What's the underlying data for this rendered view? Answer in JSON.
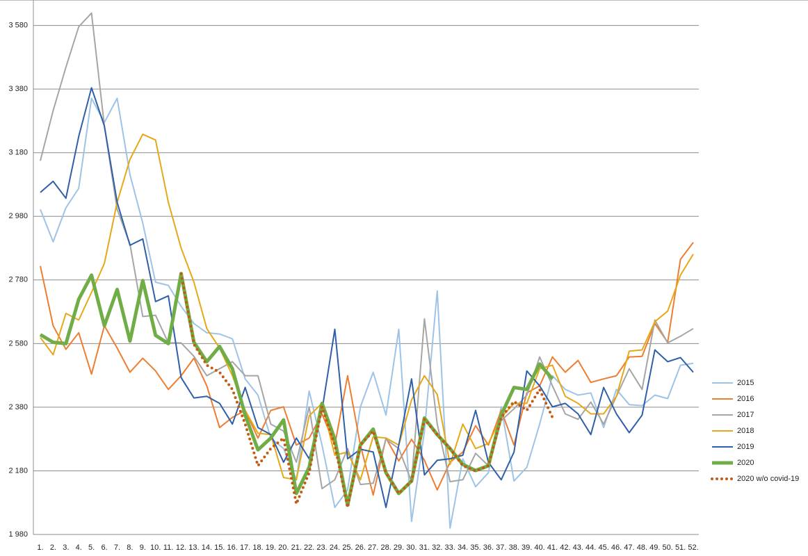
{
  "chart_data": {
    "type": "line",
    "categories": [
      "1.",
      "2.",
      "3.",
      "4.",
      "5.",
      "6.",
      "7.",
      "8.",
      "9.",
      "10.",
      "11.",
      "12.",
      "13.",
      "14.",
      "15.",
      "16.",
      "17.",
      "18.",
      "19.",
      "20.",
      "21.",
      "22.",
      "23.",
      "24.",
      "25.",
      "26.",
      "27.",
      "28.",
      "29.",
      "30.",
      "31.",
      "32.",
      "33.",
      "34.",
      "35.",
      "36.",
      "37.",
      "38.",
      "39.",
      "40.",
      "41.",
      "42.",
      "43.",
      "44.",
      "45.",
      "46.",
      "47.",
      "48.",
      "49.",
      "50.",
      "51.",
      "52."
    ],
    "ylim": [
      1980,
      3660
    ],
    "yticks": [
      {
        "value": 1980,
        "label": "1 980"
      },
      {
        "value": 2180,
        "label": "2 180"
      },
      {
        "value": 2380,
        "label": "2 380"
      },
      {
        "value": 2580,
        "label": "2 580"
      },
      {
        "value": 2780,
        "label": "2 780"
      },
      {
        "value": 2980,
        "label": "2 980"
      },
      {
        "value": 3180,
        "label": "3 180"
      },
      {
        "value": 3380,
        "label": "3 380"
      },
      {
        "value": 3580,
        "label": "3 580"
      }
    ],
    "grid": true,
    "legend": "right",
    "series": [
      {
        "name": "2015",
        "color": "#9dc3e6",
        "width": 2,
        "style": "solid",
        "values": [
          3002,
          2900,
          3007,
          3068,
          3351,
          3275,
          3351,
          3111,
          2959,
          2773,
          2763,
          2697,
          2643,
          2614,
          2610,
          2595,
          2469,
          2418,
          2283,
          2250,
          2152,
          2431,
          2261,
          2065,
          2120,
          2381,
          2490,
          2355,
          2625,
          2021,
          2305,
          2745,
          2000,
          2218,
          2130,
          2174,
          2381,
          2148,
          2191,
          2327,
          2479,
          2436,
          2418,
          2425,
          2316,
          2436,
          2388,
          2385,
          2418,
          2407,
          2512,
          2518
        ]
      },
      {
        "name": "2016",
        "color": "#ed7d31",
        "width": 2,
        "style": "solid",
        "values": [
          2824,
          2636,
          2562,
          2614,
          2484,
          2636,
          2566,
          2490,
          2534,
          2494,
          2436,
          2479,
          2534,
          2447,
          2316,
          2348,
          2370,
          2283,
          2370,
          2381,
          2261,
          2283,
          2359,
          2261,
          2479,
          2261,
          2104,
          2283,
          2211,
          2279,
          2213,
          2120,
          2207,
          2239,
          2322,
          2261,
          2370,
          2261,
          2425,
          2447,
          2538,
          2490,
          2527,
          2458,
          2469,
          2479,
          2538,
          2540,
          2643,
          2584,
          2845,
          2898
        ]
      },
      {
        "name": "2017",
        "color": "#a5a5a5",
        "width": 2,
        "style": "solid",
        "values": [
          3155,
          3312,
          3449,
          3576,
          3619,
          3264,
          3002,
          2893,
          2665,
          2669,
          2582,
          2582,
          2540,
          2479,
          2501,
          2523,
          2479,
          2479,
          2327,
          2305,
          2207,
          2381,
          2124,
          2152,
          2250,
          2137,
          2141,
          2279,
          2250,
          2146,
          2658,
          2327,
          2146,
          2152,
          2235,
          2196,
          2338,
          2375,
          2418,
          2538,
          2447,
          2359,
          2342,
          2396,
          2327,
          2414,
          2501,
          2436,
          2654,
          2582,
          2603,
          2627
        ]
      },
      {
        "name": "2018",
        "color": "#e6a817",
        "width": 2,
        "style": "solid",
        "values": [
          2599,
          2545,
          2675,
          2654,
          2741,
          2832,
          3024,
          3159,
          3238,
          3220,
          3024,
          2880,
          2773,
          2627,
          2566,
          2479,
          2370,
          2298,
          2294,
          2159,
          2152,
          2353,
          2392,
          2229,
          2239,
          2152,
          2287,
          2283,
          2261,
          2403,
          2479,
          2420,
          2200,
          2327,
          2250,
          2266,
          2348,
          2392,
          2392,
          2501,
          2512,
          2414,
          2392,
          2359,
          2359,
          2414,
          2556,
          2560,
          2649,
          2682,
          2795,
          2861
        ]
      },
      {
        "name": "2019",
        "color": "#2e5fa8",
        "width": 2,
        "style": "solid",
        "values": [
          3055,
          3090,
          3037,
          3231,
          3384,
          3264,
          3024,
          2889,
          2909,
          2712,
          2730,
          2473,
          2409,
          2414,
          2392,
          2327,
          2442,
          2316,
          2294,
          2207,
          2283,
          2218,
          2370,
          2625,
          2218,
          2248,
          2239,
          2065,
          2261,
          2469,
          2167,
          2213,
          2218,
          2229,
          2370,
          2207,
          2152,
          2239,
          2494,
          2447,
          2381,
          2392,
          2359,
          2294,
          2442,
          2359,
          2300,
          2355,
          2560,
          2523,
          2536,
          2490
        ]
      },
      {
        "name": "2020",
        "color": "#70ad47",
        "width": 5,
        "style": "solid",
        "values": [
          2608,
          2584,
          2580,
          2719,
          2795,
          2636,
          2750,
          2588,
          2778,
          2606,
          2580,
          2800,
          2584,
          2523,
          2571,
          2501,
          2355,
          2246,
          2283,
          2340,
          2109,
          2191,
          2392,
          2279,
          2072,
          2261,
          2311,
          2174,
          2109,
          2148,
          2346,
          2294,
          2250,
          2200,
          2181,
          2196,
          2355,
          2442,
          2436,
          2516,
          2469,
          null,
          null,
          null,
          null,
          null,
          null,
          null,
          null,
          null,
          null,
          null
        ]
      },
      {
        "name": "2020 w/o covid-19",
        "color": "#c55a11",
        "width": 4,
        "style": "dotted",
        "values": [
          null,
          null,
          null,
          null,
          null,
          null,
          null,
          null,
          null,
          null,
          null,
          2800,
          2578,
          2512,
          2490,
          2436,
          2327,
          2196,
          2250,
          2283,
          2076,
          2174,
          2381,
          2261,
          2065,
          2261,
          2305,
          2174,
          2109,
          2148,
          2342,
          2294,
          2250,
          2196,
          2179,
          2196,
          2348,
          2398,
          2370,
          2436,
          2348,
          null,
          null,
          null,
          null,
          null,
          null,
          null,
          null,
          null,
          null,
          null
        ]
      }
    ]
  }
}
